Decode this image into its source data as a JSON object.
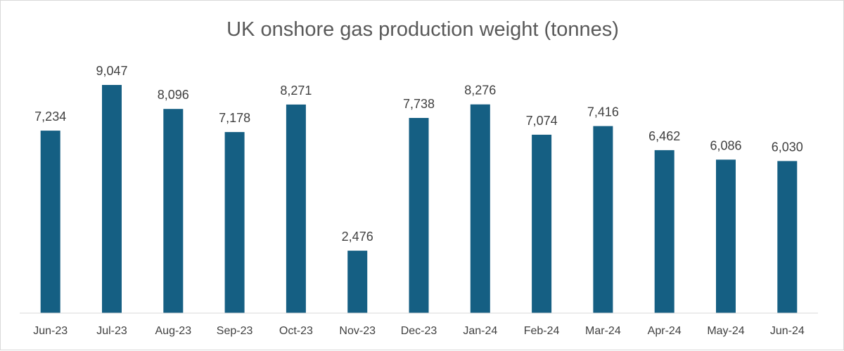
{
  "chart_data": {
    "type": "bar",
    "title": "UK onshore gas production weight (tonnes)",
    "xlabel": "",
    "ylabel": "",
    "categories": [
      "Jun-23",
      "Jul-23",
      "Aug-23",
      "Sep-23",
      "Oct-23",
      "Nov-23",
      "Dec-23",
      "Jan-24",
      "Feb-24",
      "Mar-24",
      "Apr-24",
      "May-24",
      "Jun-24"
    ],
    "values": [
      7234,
      9047,
      8096,
      7178,
      8271,
      2476,
      7738,
      8276,
      7074,
      7416,
      6462,
      6086,
      6030
    ],
    "value_labels": [
      "7,234",
      "9,047",
      "8,096",
      "7,178",
      "8,271",
      "2,476",
      "7,738",
      "8,276",
      "7,074",
      "7,416",
      "6,462",
      "6,086",
      "6,030"
    ],
    "ylim": [
      0,
      9047
    ],
    "grid": false,
    "legend": "none",
    "bar_color": "#155f83",
    "axis_color": "#d9d9d9"
  }
}
